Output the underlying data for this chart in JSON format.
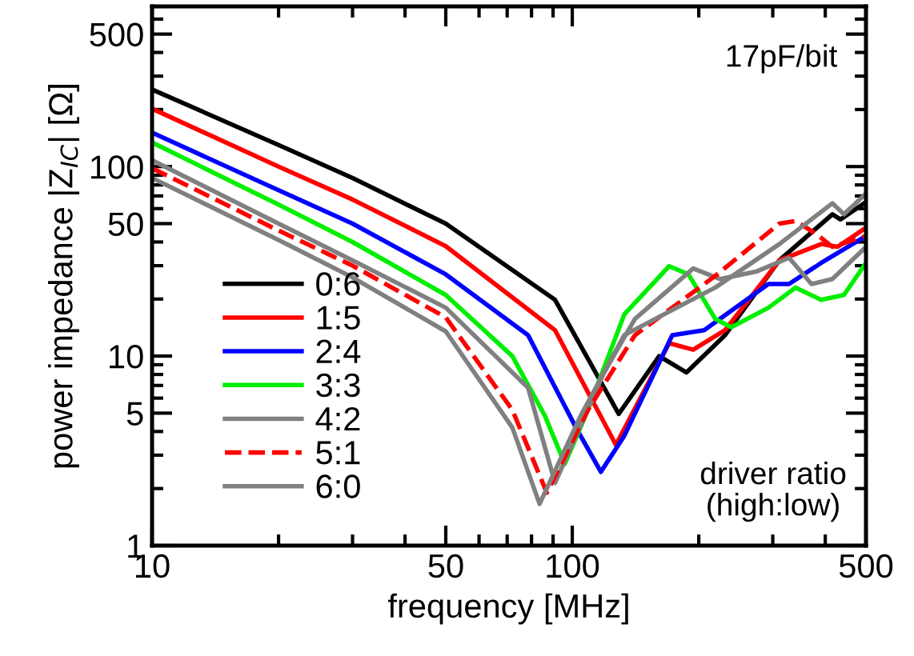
{
  "chart_data": {
    "type": "line",
    "xlabel": "frequency [MHz]",
    "ylabel": "power impedance |Z$_{IC}$| [Ω]",
    "log": "xy",
    "xlim": [
      10,
      500
    ],
    "ylim": [
      1,
      700
    ],
    "xticks": [
      10,
      {
        "value": 20,
        "label": null
      },
      {
        "value": 30,
        "label": null
      },
      {
        "value": 40,
        "label": null
      },
      50,
      {
        "value": 60,
        "label": null
      },
      {
        "value": 70,
        "label": null
      },
      {
        "value": 80,
        "label": null
      },
      {
        "value": 90,
        "label": null
      },
      100,
      {
        "value": 200,
        "label": null
      },
      {
        "value": 300,
        "label": null
      },
      {
        "value": 400,
        "label": null
      },
      500
    ],
    "yticks": [
      1,
      {
        "value": 2,
        "label": null
      },
      {
        "value": 3,
        "label": null
      },
      {
        "value": 4,
        "label": null
      },
      5,
      {
        "value": 6,
        "label": null
      },
      {
        "value": 7,
        "label": null
      },
      {
        "value": 8,
        "label": null
      },
      {
        "value": 9,
        "label": null
      },
      10,
      {
        "value": 20,
        "label": null
      },
      {
        "value": 30,
        "label": null
      },
      {
        "value": 40,
        "label": null
      },
      50,
      {
        "value": 60,
        "label": null
      },
      {
        "value": 70,
        "label": null
      },
      {
        "value": 80,
        "label": null
      },
      {
        "value": 90,
        "label": null
      },
      100,
      {
        "value": 200,
        "label": null
      },
      {
        "value": 300,
        "label": null
      },
      {
        "value": 400,
        "label": null
      },
      500,
      {
        "value": 600,
        "label": null
      },
      {
        "value": 700,
        "label": null
      }
    ],
    "grid": false,
    "legend": "lower left",
    "marker": "none",
    "annotations": [
      "17pF/bit",
      "driver ratio\n(high:low)"
    ],
    "series": [
      {
        "name": "0:6",
        "color": "#000000",
        "line_style": "solid",
        "x": [
          10,
          20,
          30,
          50,
          91,
          129,
          161,
          187,
          231,
          311,
          416,
          435,
          500
        ],
        "values": [
          255,
          130,
          87,
          50,
          19.8,
          4.95,
          10,
          8.2,
          12.9,
          32,
          56,
          52.6,
          65
        ]
      },
      {
        "name": "1:5",
        "color": "#ff0000",
        "line_style": "solid",
        "x": [
          10,
          20,
          30,
          50,
          91,
          127,
          170,
          194,
          231,
          311,
          391,
          428,
          500
        ],
        "values": [
          202,
          100,
          67,
          38,
          13.7,
          3.4,
          11.7,
          10.8,
          13.7,
          32,
          39,
          37.7,
          47.6
        ]
      },
      {
        "name": "2:4",
        "color": "#0000ff",
        "line_style": "solid",
        "x": [
          10,
          20,
          30,
          50,
          78.5,
          102,
          117,
          133,
          173,
          206,
          293,
          328,
          391,
          500
        ],
        "values": [
          151,
          75,
          50,
          27,
          12.9,
          4.2,
          2.45,
          3.8,
          12.9,
          13.7,
          24,
          24,
          31,
          43
        ]
      },
      {
        "name": "3:3",
        "color": "#00ee00",
        "line_style": "solid",
        "x": [
          10,
          20,
          30,
          50,
          72,
          86,
          96,
          109,
          133,
          170,
          189,
          219,
          239,
          293,
          340,
          391,
          443,
          500
        ],
        "values": [
          134,
          63,
          40,
          21,
          10,
          4.86,
          2.7,
          5.2,
          16.6,
          29.8,
          27,
          15.7,
          14.2,
          18,
          23,
          19.8,
          21,
          31
        ]
      },
      {
        "name": "4:2",
        "color": "#808080",
        "line_style": "solid",
        "x": [
          10,
          20,
          30,
          50,
          78.5,
          91,
          119,
          141,
          194,
          225,
          275,
          328,
          371,
          416,
          500
        ],
        "values": [
          108,
          50,
          32,
          18,
          6.8,
          2.14,
          8.2,
          15.7,
          29,
          25.5,
          28,
          33,
          24,
          25.5,
          37.7
        ]
      },
      {
        "name": "5:1",
        "color": "#ff0000",
        "line_style": "dashed",
        "x": [
          10,
          20,
          30,
          50,
          72,
          87,
          109,
          141,
          219,
          311,
          340,
          381,
          416,
          500
        ],
        "values": [
          98,
          46,
          30,
          16,
          5.2,
          1.9,
          5.2,
          12.9,
          26.5,
          50,
          51.6,
          44,
          37.7,
          43
        ]
      },
      {
        "name": "6:0",
        "color": "#808080",
        "line_style": "solid",
        "x": [
          10,
          20,
          30,
          50,
          72,
          83.6,
          105,
          133,
          219,
          311,
          416,
          443,
          500
        ],
        "values": [
          87,
          41,
          26,
          13.5,
          4.2,
          1.66,
          4.9,
          12.9,
          23,
          39,
          64,
          56,
          72
        ]
      }
    ]
  }
}
